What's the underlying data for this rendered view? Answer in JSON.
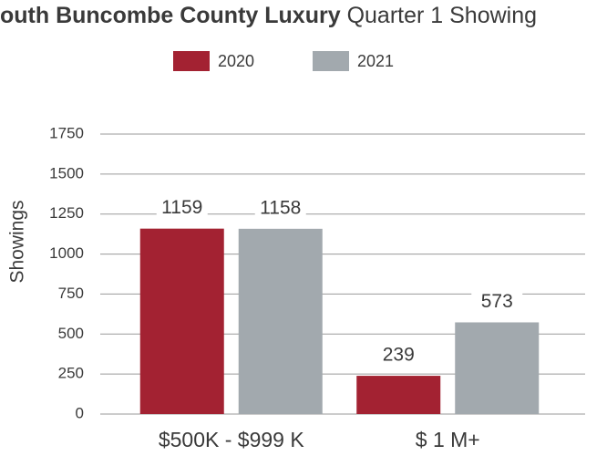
{
  "chart_data": {
    "type": "bar",
    "title": "outh Buncombe County Luxury",
    "subtitle": "Quarter 1 Showing",
    "y_label": "Showings",
    "categories": [
      "$500K - $999 K",
      "$ 1 M+"
    ],
    "series": [
      {
        "name": "2020",
        "color": "#a32232",
        "values": [
          1159,
          239
        ]
      },
      {
        "name": "2021",
        "color": "#a2a9ae",
        "values": [
          1158,
          573
        ]
      }
    ],
    "ylim": [
      0,
      1750
    ],
    "yticks": [
      0,
      250,
      500,
      750,
      1000,
      1250,
      1500,
      1750
    ],
    "grid": true
  }
}
